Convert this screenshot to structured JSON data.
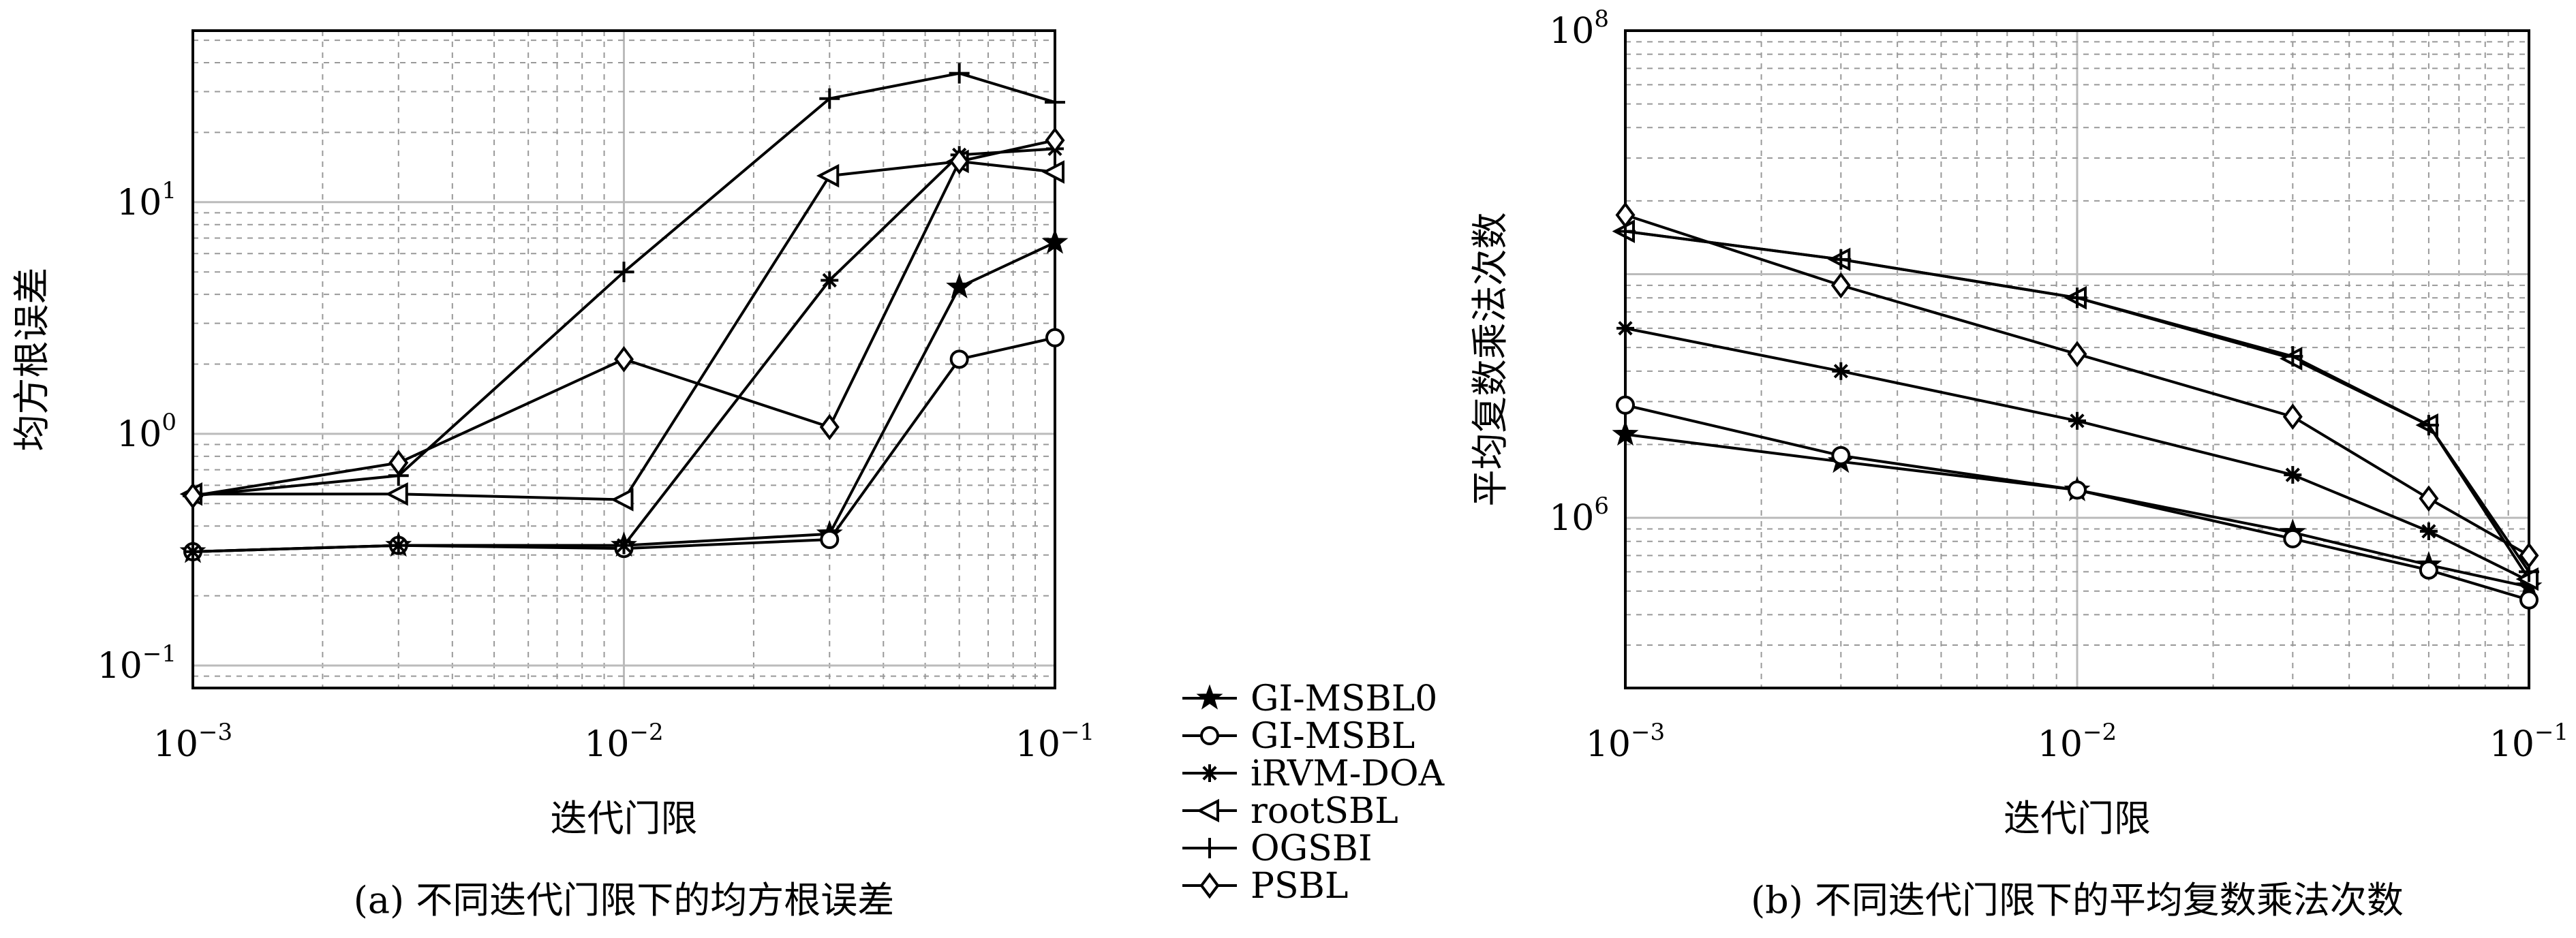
{
  "legend": {
    "entries": [
      {
        "label": "GI-MSBL0",
        "marker": "star5"
      },
      {
        "label": "GI-MSBL",
        "marker": "circle"
      },
      {
        "label": "iRVM-DOA",
        "marker": "asterisk"
      },
      {
        "label": "rootSBL",
        "marker": "triangle-left"
      },
      {
        "label": "OGSBI",
        "marker": "plus"
      },
      {
        "label": "PSBL",
        "marker": "diamond"
      }
    ]
  },
  "chart_data": [
    {
      "type": "line",
      "caption": "(a) 不同迭代门限下的均方根误差",
      "xlabel": "迭代门限",
      "ylabel": "均方根误差",
      "xscale": "log",
      "yscale": "log",
      "xlim": [
        0.001,
        0.1
      ],
      "ylim": [
        0.08,
        55
      ],
      "grid": true,
      "xticks": [
        {
          "base": "10",
          "exp": "−3",
          "value": 0.001
        },
        {
          "base": "10",
          "exp": "−2",
          "value": 0.01
        },
        {
          "base": "10",
          "exp": "−1",
          "value": 0.1
        }
      ],
      "yticks": [
        {
          "base": "10",
          "exp": "−1",
          "value": 0.1
        },
        {
          "base": "10",
          "exp": "0",
          "value": 1
        },
        {
          "base": "10",
          "exp": "1",
          "value": 10
        }
      ],
      "x": [
        0.001,
        0.003,
        0.01,
        0.03,
        0.06,
        0.1
      ],
      "series": [
        {
          "name": "GI-MSBL0",
          "marker": "star5",
          "values": [
            0.31,
            0.33,
            0.33,
            0.37,
            4.3,
            6.7
          ]
        },
        {
          "name": "GI-MSBL",
          "marker": "circle",
          "values": [
            0.31,
            0.33,
            0.32,
            0.35,
            2.1,
            2.6
          ]
        },
        {
          "name": "iRVM-DOA",
          "marker": "asterisk",
          "values": [
            0.31,
            0.33,
            0.33,
            4.6,
            16,
            17
          ]
        },
        {
          "name": "rootSBL",
          "marker": "triangle-left",
          "values": [
            0.55,
            0.55,
            0.52,
            13,
            15,
            13.5
          ]
        },
        {
          "name": "OGSBI",
          "marker": "plus",
          "values": [
            0.54,
            0.66,
            5,
            28,
            36,
            27
          ]
        },
        {
          "name": "PSBL",
          "marker": "diamond",
          "values": [
            0.54,
            0.75,
            2.1,
            1.07,
            15,
            18.5
          ]
        }
      ]
    },
    {
      "type": "line",
      "caption": "(b) 不同迭代门限下的平均复数乘法次数",
      "xlabel": "迭代门限",
      "ylabel": "平均复数乘法次数",
      "xscale": "log",
      "yscale": "log",
      "xlim": [
        0.001,
        0.1
      ],
      "ylim": [
        200000,
        100000000
      ],
      "grid": true,
      "xticks": [
        {
          "base": "10",
          "exp": "−3",
          "value": 0.001
        },
        {
          "base": "10",
          "exp": "−2",
          "value": 0.01
        },
        {
          "base": "10",
          "exp": "−1",
          "value": 0.1
        }
      ],
      "yticks": [
        {
          "base": "10",
          "exp": "6",
          "value": 1000000
        },
        {
          "base": "10",
          "exp": "8",
          "value": 100000000
        }
      ],
      "x": [
        0.001,
        0.003,
        0.01,
        0.03,
        0.06,
        0.1
      ],
      "series": [
        {
          "name": "GI-MSBL0",
          "marker": "star5",
          "values": [
            2200000,
            1700000,
            1300000,
            870000,
            640000,
            520000
          ]
        },
        {
          "name": "GI-MSBL",
          "marker": "circle",
          "values": [
            2900000,
            1800000,
            1300000,
            820000,
            610000,
            460000
          ]
        },
        {
          "name": "iRVM-DOA",
          "marker": "asterisk",
          "values": [
            6000000,
            4000000,
            2500000,
            1500000,
            880000,
            550000
          ]
        },
        {
          "name": "rootSBL",
          "marker": "triangle-left",
          "values": [
            15000000,
            11500000,
            8000000,
            4500000,
            2400000,
            560000
          ]
        },
        {
          "name": "OGSBI",
          "marker": "plus",
          "values": [
            15000000,
            11500000,
            8000000,
            4600000,
            2400000,
            600000
          ]
        },
        {
          "name": "PSBL",
          "marker": "diamond",
          "values": [
            17500000,
            9000000,
            4700000,
            2600000,
            1200000,
            700000
          ]
        }
      ]
    }
  ]
}
